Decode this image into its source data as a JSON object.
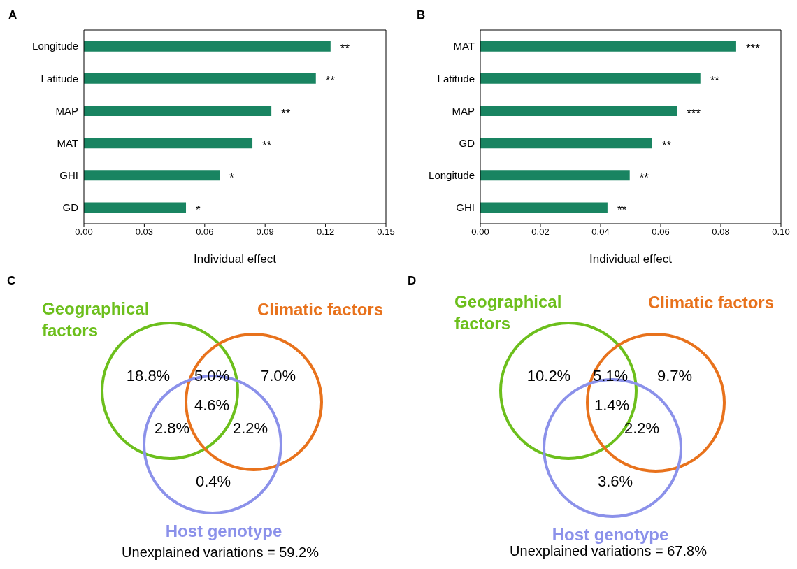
{
  "chart_data": [
    {
      "type": "bar",
      "title": "A",
      "orientation": "horizontal",
      "categories": [
        "Longitude",
        "Latitude",
        "MAP",
        "MAT",
        "GHI",
        "GD"
      ],
      "values": [
        0.1225,
        0.1152,
        0.0931,
        0.0837,
        0.0674,
        0.0507
      ],
      "value_labels": [
        "**",
        "**",
        "**",
        "**",
        "*",
        "*"
      ],
      "color": "#198461",
      "xlim": [
        0,
        0.15
      ],
      "xticks": [
        {
          "value": 0,
          "label": "0.00"
        },
        {
          "value": 0.03,
          "label": "0.03"
        },
        {
          "value": 0.06,
          "label": "0.06"
        },
        {
          "value": 0.09,
          "label": "0.09"
        },
        {
          "value": 0.12,
          "label": "0.12"
        },
        {
          "value": 0.15,
          "label": "0.15"
        }
      ],
      "xlabel": "Individual effect"
    },
    {
      "type": "bar",
      "title": "B",
      "orientation": "horizontal",
      "categories": [
        "MAT",
        "Latitude",
        "MAP",
        "GD",
        "Longitude",
        "GHI"
      ],
      "values": [
        0.0851,
        0.0732,
        0.0654,
        0.0572,
        0.0497,
        0.0423
      ],
      "value_labels": [
        "***",
        "**",
        "***",
        "**",
        "**",
        "**"
      ],
      "color": "#198461",
      "xlim": [
        0,
        0.1
      ],
      "xticks": [
        {
          "value": 0,
          "label": "0.00"
        },
        {
          "value": 0.02,
          "label": "0.02"
        },
        {
          "value": 0.04,
          "label": "0.04"
        },
        {
          "value": 0.06,
          "label": "0.06"
        },
        {
          "value": 0.08,
          "label": "0.08"
        },
        {
          "value": 0.1,
          "label": "0.10"
        }
      ],
      "xlabel": "Individual effect"
    },
    {
      "type": "other",
      "title": "C",
      "categories": [
        "Geographical factors",
        "Climatic factors",
        "Host genotype"
      ],
      "colors": [
        "#6cbf1c",
        "#e8721c",
        "#8b91ea"
      ],
      "annotations": [
        "18.8%",
        "7.0%",
        "0.4%",
        "5.0%",
        "2.8%",
        "2.2%",
        "4.6%",
        "Unexplained variations = 59.2%"
      ]
    },
    {
      "type": "other",
      "title": "D",
      "categories": [
        "Geographical factors",
        "Climatic factors",
        "Host genotype"
      ],
      "colors": [
        "#6cbf1c",
        "#e8721c",
        "#8b91ea"
      ],
      "annotations": [
        "10.2%",
        "9.7%",
        "3.6%",
        "5.1%",
        "2.2%",
        "1.4%",
        "Unexplained variations = 67.8%"
      ]
    }
  ]
}
